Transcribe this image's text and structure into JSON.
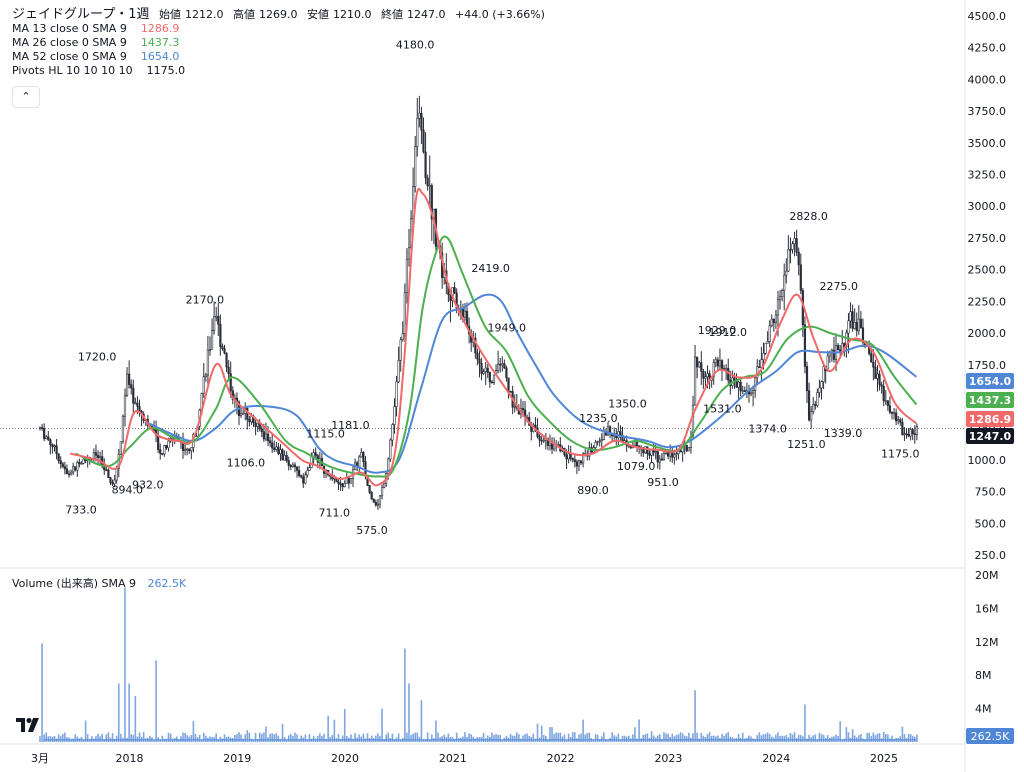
{
  "header": {
    "title": "ジェイドグループ・1週",
    "open_label": "始値",
    "open": "1212.0",
    "high_label": "高値",
    "high": "1269.0",
    "low_label": "安値",
    "low": "1210.0",
    "close_label": "終値",
    "close": "1247.0",
    "change": "+44.0 (+3.66%)"
  },
  "indicators": [
    {
      "label": "MA 13 close 0 SMA 9",
      "value": "1286.9",
      "color": "#f06a6a"
    },
    {
      "label": "MA 26 close 0 SMA 9",
      "value": "1437.3",
      "color": "#4caf50"
    },
    {
      "label": "MA 52 close 0 SMA 9",
      "value": "1654.0",
      "color": "#4f86d6"
    },
    {
      "label": "Pivots HL 10 10 10 10",
      "value": "1175.0",
      "color": "#131722"
    }
  ],
  "volume_legend": {
    "label": "Volume (出来高) SMA 9",
    "value": "262.5K",
    "color": "#4f86d6"
  },
  "chart_data": {
    "type": "candlestick",
    "price_axis": {
      "ticks": [
        "250.0",
        "500.0",
        "750.0",
        "1000.0",
        "1250.0",
        "1500.0",
        "1750.0",
        "2000.0",
        "2250.0",
        "2500.0",
        "2750.0",
        "3000.0",
        "3250.0",
        "3500.0",
        "3750.0",
        "4000.0",
        "4250.0",
        "4500.0"
      ],
      "range": [
        250,
        4500
      ]
    },
    "volume_axis": {
      "ticks": [
        "4M",
        "8M",
        "12M",
        "16M",
        "20M"
      ],
      "range": [
        0,
        20000000
      ]
    },
    "time_axis": [
      "3月",
      "2018",
      "2019",
      "2020",
      "2021",
      "2022",
      "2023",
      "2024",
      "2025"
    ],
    "time_range": [
      2017.17,
      2025.3
    ],
    "price_path": [
      [
        2017.17,
        1250
      ],
      [
        2017.3,
        1100
      ],
      [
        2017.42,
        880
      ],
      [
        2017.55,
        980
      ],
      [
        2017.7,
        1040
      ],
      [
        2017.85,
        780
      ],
      [
        2017.92,
        1150
      ],
      [
        2017.97,
        1650
      ],
      [
        2018.05,
        1450
      ],
      [
        2018.2,
        1250
      ],
      [
        2018.3,
        1050
      ],
      [
        2018.42,
        1200
      ],
      [
        2018.55,
        1050
      ],
      [
        2018.62,
        1250
      ],
      [
        2018.72,
        1800
      ],
      [
        2018.8,
        2100
      ],
      [
        2018.88,
        1850
      ],
      [
        2018.97,
        1450
      ],
      [
        2019.1,
        1350
      ],
      [
        2019.25,
        1200
      ],
      [
        2019.4,
        1050
      ],
      [
        2019.5,
        950
      ],
      [
        2019.62,
        850
      ],
      [
        2019.72,
        1050
      ],
      [
        2019.82,
        900
      ],
      [
        2019.95,
        790
      ],
      [
        2020.05,
        850
      ],
      [
        2020.15,
        1050
      ],
      [
        2020.22,
        750
      ],
      [
        2020.3,
        630
      ],
      [
        2020.38,
        900
      ],
      [
        2020.45,
        1350
      ],
      [
        2020.55,
        2200
      ],
      [
        2020.62,
        3100
      ],
      [
        2020.68,
        3900
      ],
      [
        2020.72,
        3500
      ],
      [
        2020.8,
        3000
      ],
      [
        2020.9,
        2500
      ],
      [
        2021.02,
        2250
      ],
      [
        2021.12,
        2100
      ],
      [
        2021.25,
        1750
      ],
      [
        2021.35,
        1600
      ],
      [
        2021.45,
        1800
      ],
      [
        2021.55,
        1450
      ],
      [
        2021.7,
        1300
      ],
      [
        2021.85,
        1150
      ],
      [
        2022.05,
        1050
      ],
      [
        2022.15,
        960
      ],
      [
        2022.3,
        1100
      ],
      [
        2022.45,
        1250
      ],
      [
        2022.6,
        1150
      ],
      [
        2022.75,
        1100
      ],
      [
        2022.9,
        1020
      ],
      [
        2023.05,
        1050
      ],
      [
        2023.2,
        1100
      ],
      [
        2023.25,
        1800
      ],
      [
        2023.35,
        1650
      ],
      [
        2023.45,
        1750
      ],
      [
        2023.6,
        1600
      ],
      [
        2023.75,
        1500
      ],
      [
        2023.85,
        1750
      ],
      [
        2023.95,
        2050
      ],
      [
        2024.05,
        2300
      ],
      [
        2024.12,
        2650
      ],
      [
        2024.2,
        2700
      ],
      [
        2024.25,
        1950
      ],
      [
        2024.3,
        1300
      ],
      [
        2024.38,
        1500
      ],
      [
        2024.48,
        1800
      ],
      [
        2024.6,
        1900
      ],
      [
        2024.7,
        2100
      ],
      [
        2024.8,
        2000
      ],
      [
        2024.9,
        1700
      ],
      [
        2025.0,
        1500
      ],
      [
        2025.1,
        1350
      ],
      [
        2025.2,
        1180
      ],
      [
        2025.25,
        1220
      ],
      [
        2025.3,
        1247
      ]
    ],
    "ma13_path": [
      [
        2017.45,
        1050
      ],
      [
        2017.7,
        1000
      ],
      [
        2017.9,
        950
      ],
      [
        2018.05,
        1380
      ],
      [
        2018.25,
        1200
      ],
      [
        2018.45,
        1150
      ],
      [
        2018.6,
        1180
      ],
      [
        2018.8,
        1750
      ],
      [
        2018.95,
        1500
      ],
      [
        2019.2,
        1300
      ],
      [
        2019.4,
        1150
      ],
      [
        2019.6,
        1000
      ],
      [
        2019.75,
        950
      ],
      [
        2019.95,
        850
      ],
      [
        2020.15,
        900
      ],
      [
        2020.3,
        800
      ],
      [
        2020.45,
        1000
      ],
      [
        2020.55,
        1800
      ],
      [
        2020.65,
        3000
      ],
      [
        2020.72,
        3100
      ],
      [
        2020.82,
        2900
      ],
      [
        2020.95,
        2400
      ],
      [
        2021.1,
        2100
      ],
      [
        2021.3,
        1800
      ],
      [
        2021.5,
        1550
      ],
      [
        2021.7,
        1300
      ],
      [
        2021.9,
        1150
      ],
      [
        2022.1,
        1050
      ],
      [
        2022.3,
        1050
      ],
      [
        2022.5,
        1150
      ],
      [
        2022.7,
        1100
      ],
      [
        2022.9,
        1080
      ],
      [
        2023.1,
        1090
      ],
      [
        2023.25,
        1400
      ],
      [
        2023.45,
        1700
      ],
      [
        2023.65,
        1650
      ],
      [
        2023.85,
        1700
      ],
      [
        2024.05,
        2100
      ],
      [
        2024.2,
        2300
      ],
      [
        2024.35,
        1950
      ],
      [
        2024.5,
        1700
      ],
      [
        2024.7,
        1950
      ],
      [
        2024.9,
        1850
      ],
      [
        2025.1,
        1450
      ],
      [
        2025.3,
        1287
      ]
    ],
    "ma26_path": [
      [
        2017.5,
        1050
      ],
      [
        2017.8,
        950
      ],
      [
        2018.0,
        1100
      ],
      [
        2018.2,
        1250
      ],
      [
        2018.4,
        1180
      ],
      [
        2018.6,
        1150
      ],
      [
        2018.8,
        1400
      ],
      [
        2018.95,
        1650
      ],
      [
        2019.2,
        1450
      ],
      [
        2019.45,
        1150
      ],
      [
        2019.65,
        1050
      ],
      [
        2019.85,
        950
      ],
      [
        2020.05,
        900
      ],
      [
        2020.3,
        870
      ],
      [
        2020.45,
        930
      ],
      [
        2020.6,
        1400
      ],
      [
        2020.72,
        2200
      ],
      [
        2020.85,
        2650
      ],
      [
        2020.95,
        2750
      ],
      [
        2021.1,
        2450
      ],
      [
        2021.3,
        2050
      ],
      [
        2021.5,
        1850
      ],
      [
        2021.7,
        1500
      ],
      [
        2021.9,
        1300
      ],
      [
        2022.1,
        1150
      ],
      [
        2022.3,
        1080
      ],
      [
        2022.5,
        1100
      ],
      [
        2022.7,
        1150
      ],
      [
        2022.9,
        1100
      ],
      [
        2023.1,
        1080
      ],
      [
        2023.3,
        1300
      ],
      [
        2023.5,
        1550
      ],
      [
        2023.7,
        1650
      ],
      [
        2023.9,
        1700
      ],
      [
        2024.1,
        1950
      ],
      [
        2024.3,
        2050
      ],
      [
        2024.5,
        2000
      ],
      [
        2024.7,
        1950
      ],
      [
        2024.9,
        1900
      ],
      [
        2025.1,
        1650
      ],
      [
        2025.3,
        1437
      ]
    ],
    "ma52_path": [
      [
        2018.15,
        1300
      ],
      [
        2018.4,
        1200
      ],
      [
        2018.6,
        1150
      ],
      [
        2018.8,
        1250
      ],
      [
        2019.0,
        1400
      ],
      [
        2019.3,
        1420
      ],
      [
        2019.55,
        1350
      ],
      [
        2019.75,
        1100
      ],
      [
        2019.9,
        1000
      ],
      [
        2020.1,
        950
      ],
      [
        2020.3,
        900
      ],
      [
        2020.5,
        1000
      ],
      [
        2020.7,
        1550
      ],
      [
        2020.9,
        2100
      ],
      [
        2021.1,
        2200
      ],
      [
        2021.3,
        2300
      ],
      [
        2021.45,
        2250
      ],
      [
        2021.6,
        2000
      ],
      [
        2021.8,
        1700
      ],
      [
        2021.95,
        1500
      ],
      [
        2022.2,
        1300
      ],
      [
        2022.5,
        1200
      ],
      [
        2022.8,
        1150
      ],
      [
        2023.0,
        1100
      ],
      [
        2023.2,
        1150
      ],
      [
        2023.5,
        1350
      ],
      [
        2023.75,
        1550
      ],
      [
        2024.0,
        1700
      ],
      [
        2024.2,
        1850
      ],
      [
        2024.4,
        1850
      ],
      [
        2024.6,
        1850
      ],
      [
        2024.8,
        1900
      ],
      [
        2025.0,
        1850
      ],
      [
        2025.3,
        1654
      ]
    ],
    "pivots": [
      {
        "x": 2017.7,
        "y": 1720,
        "label": "1720.0",
        "pos": "above"
      },
      {
        "x": 2017.55,
        "y": 733,
        "label": "733.0",
        "pos": "below"
      },
      {
        "x": 2017.98,
        "y": 894,
        "label": "894.0",
        "pos": "below"
      },
      {
        "x": 2018.17,
        "y": 932,
        "label": "932.0",
        "pos": "below"
      },
      {
        "x": 2018.7,
        "y": 2170,
        "label": "2170.0",
        "pos": "above"
      },
      {
        "x": 2019.08,
        "y": 1106,
        "label": "1106.0",
        "pos": "below"
      },
      {
        "x": 2019.82,
        "y": 1115,
        "label": "1115.0",
        "pos": "above"
      },
      {
        "x": 2019.9,
        "y": 711,
        "label": "711.0",
        "pos": "below"
      },
      {
        "x": 2020.05,
        "y": 1181,
        "label": "1181.0",
        "pos": "above"
      },
      {
        "x": 2020.25,
        "y": 575,
        "label": "575.0",
        "pos": "below"
      },
      {
        "x": 2020.65,
        "y": 4180,
        "label": "4180.0",
        "pos": "above"
      },
      {
        "x": 2021.35,
        "y": 2419,
        "label": "2419.0",
        "pos": "above"
      },
      {
        "x": 2021.5,
        "y": 1949,
        "label": "1949.0",
        "pos": "above"
      },
      {
        "x": 2022.3,
        "y": 890,
        "label": "890.0",
        "pos": "below"
      },
      {
        "x": 2022.35,
        "y": 1235,
        "label": "1235.0",
        "pos": "above"
      },
      {
        "x": 2022.62,
        "y": 1350,
        "label": "1350.0",
        "pos": "above"
      },
      {
        "x": 2022.7,
        "y": 1079,
        "label": "1079.0",
        "pos": "below"
      },
      {
        "x": 2022.95,
        "y": 951,
        "label": "951.0",
        "pos": "below"
      },
      {
        "x": 2023.45,
        "y": 1929,
        "label": "1929.0",
        "pos": "above"
      },
      {
        "x": 2023.55,
        "y": 1912,
        "label": "1912.0",
        "pos": "above"
      },
      {
        "x": 2023.5,
        "y": 1531,
        "label": "1531.0",
        "pos": "below"
      },
      {
        "x": 2023.92,
        "y": 1374,
        "label": "1374.0",
        "pos": "below"
      },
      {
        "x": 2024.3,
        "y": 2828,
        "label": "2828.0",
        "pos": "above"
      },
      {
        "x": 2024.28,
        "y": 1251,
        "label": "1251.0",
        "pos": "below"
      },
      {
        "x": 2024.58,
        "y": 2275,
        "label": "2275.0",
        "pos": "above"
      },
      {
        "x": 2024.62,
        "y": 1339,
        "label": "1339.0",
        "pos": "below"
      },
      {
        "x": 2025.15,
        "y": 1175,
        "label": "1175.0",
        "pos": "below"
      }
    ],
    "volume_spikes": [
      [
        2017.18,
        11.8
      ],
      [
        2017.9,
        7.0
      ],
      [
        2017.96,
        18.5
      ],
      [
        2018.0,
        7.0
      ],
      [
        2018.05,
        5.5
      ],
      [
        2018.25,
        9.0
      ],
      [
        2018.6,
        2.5
      ],
      [
        2020.0,
        2.5
      ],
      [
        2020.35,
        4.0
      ],
      [
        2020.55,
        11.2
      ],
      [
        2020.6,
        7.0
      ],
      [
        2020.7,
        5.0
      ],
      [
        2023.25,
        6.2
      ],
      [
        2024.26,
        4.5
      ]
    ],
    "volume_sma": 0.26,
    "price_labels": [
      {
        "value": "1654.0",
        "price": 1654,
        "color": "#4f86d6"
      },
      {
        "value": "1437.3",
        "price": 1437,
        "color": "#4caf50"
      },
      {
        "value": "1286.9",
        "price": 1287,
        "color": "#f06a6a"
      },
      {
        "value": "1247.0",
        "price": 1247,
        "color": "#131722"
      }
    ],
    "volume_price_label": {
      "value": "262.5K",
      "color": "#4f86d6"
    },
    "current_price": 1247
  }
}
